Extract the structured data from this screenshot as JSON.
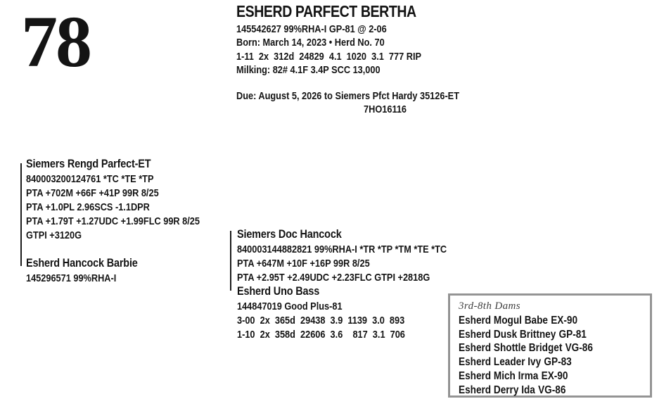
{
  "colors": {
    "text": "#141414",
    "box_border": "#949494",
    "dams_title": "#3f3f3f"
  },
  "lot": {
    "number": "78"
  },
  "header": {
    "name": "ESHERD PARFECT BERTHA",
    "lines": [
      "145542627 99%RHA-I GP-81 @ 2-06",
      "Born: March 14, 2023 • Herd No. 70",
      "1-11  2x  312d  24829  4.1  1020  3.1  777 RIP",
      "Milking: 82# 4.1F 3.4P SCC 13,000"
    ],
    "due_line": "Due: August 5, 2026 to Siemers Pfct Hardy 35126-ET",
    "service_sire_code": "7HO16116"
  },
  "pedigree": {
    "sire": {
      "name": "Siemers Rengd Parfect-ET",
      "lines": [
        "840003200124761 *TC *TE *TP",
        "PTA +702M +66F +41P 99R 8/25",
        "PTA +1.0PL 2.96SCS -1.1DPR",
        "PTA +1.79T +1.27UDC +1.99FLC 99R 8/25",
        "GTPI +3120G"
      ]
    },
    "dam": {
      "name": "Esherd Hancock Barbie",
      "lines": [
        "145296571 99%RHA-I"
      ]
    },
    "dam_sire": {
      "name": "Siemers Doc Hancock",
      "lines": [
        "840003144882821 99%RHA-I *TR *TP *TM *TE *TC",
        "PTA +647M +10F +16P 99R 8/25",
        "PTA +2.95T +2.49UDC +2.23FLC GTPI +2818G"
      ]
    },
    "second_dam": {
      "name": "Esherd Uno Bass",
      "lines": [
        "144847019 Good Plus-81",
        "3-00  2x  365d  29438  3.9  1139  3.0  893",
        "1-10  2x  358d  22606  3.6    817  3.1  706"
      ]
    }
  },
  "dams_box": {
    "title": "3rd-8th Dams",
    "items": [
      {
        "name": "Esherd Mogul Babe",
        "score": "EX-90"
      },
      {
        "name": "Esherd Dusk Brittney",
        "score": "GP-81"
      },
      {
        "name": "Esherd Shottle Bridget",
        "score": "VG-86"
      },
      {
        "name": "Esherd Leader Ivy",
        "score": "GP-83"
      },
      {
        "name": "Esherd Mich Irma",
        "score": "EX-90"
      },
      {
        "name": "Esherd Derry Ida",
        "score": "VG-86"
      }
    ]
  }
}
